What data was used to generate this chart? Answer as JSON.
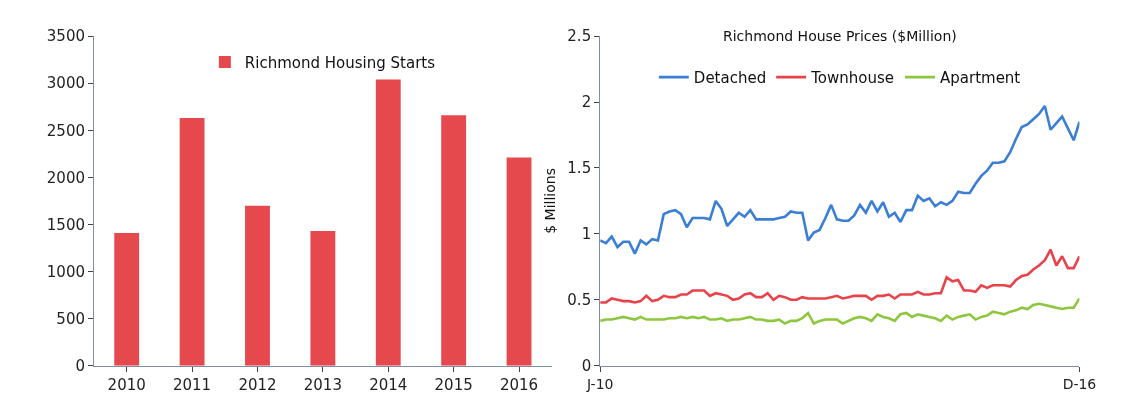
{
  "chart_data": [
    {
      "type": "bar",
      "categories": [
        "2010",
        "2011",
        "2012",
        "2013",
        "2014",
        "2015",
        "2016"
      ],
      "series": [
        {
          "name": "Richmond Housing Starts",
          "color": "#e5484d",
          "values": [
            1410,
            2630,
            1700,
            1430,
            3040,
            2660,
            2210
          ]
        }
      ],
      "ylim": [
        0,
        3500
      ],
      "yticks": [
        0,
        500,
        1000,
        1500,
        2000,
        2500,
        3000,
        3500
      ],
      "legend": "top",
      "grid": false
    },
    {
      "type": "line",
      "title": "Richmond House Prices ($Million)",
      "ylabel": "$ Millions",
      "categories": [
        "J-10",
        null,
        null,
        null,
        null,
        null,
        null,
        null,
        null,
        null,
        null,
        null,
        null,
        null,
        null,
        null,
        null,
        null,
        null,
        null,
        null,
        null,
        null,
        null,
        null,
        null,
        null,
        null,
        null,
        null,
        null,
        null,
        null,
        null,
        null,
        null,
        null,
        null,
        null,
        null,
        null,
        null,
        null,
        null,
        null,
        null,
        null,
        null,
        null,
        null,
        null,
        null,
        null,
        null,
        null,
        null,
        null,
        null,
        null,
        null,
        null,
        null,
        null,
        null,
        null,
        null,
        null,
        null,
        null,
        null,
        null,
        null,
        null,
        null,
        null,
        null,
        null,
        null,
        null,
        null,
        null,
        null,
        null,
        "D-16"
      ],
      "series": [
        {
          "name": "Detached",
          "color": "#3a7fd5",
          "values": [
            0.95,
            0.93,
            0.98,
            0.9,
            0.94,
            0.94,
            0.85,
            0.95,
            0.92,
            0.96,
            0.95,
            1.15,
            1.17,
            1.18,
            1.15,
            1.05,
            1.12,
            1.12,
            1.12,
            1.11,
            1.25,
            1.19,
            1.06,
            1.11,
            1.16,
            1.13,
            1.18,
            1.11,
            1.11,
            1.11,
            1.11,
            1.12,
            1.13,
            1.17,
            1.16,
            1.16,
            0.95,
            1.01,
            1.03,
            1.12,
            1.22,
            1.11,
            1.1,
            1.1,
            1.14,
            1.22,
            1.16,
            1.25,
            1.17,
            1.24,
            1.13,
            1.16,
            1.09,
            1.18,
            1.18,
            1.29,
            1.25,
            1.27,
            1.21,
            1.24,
            1.22,
            1.25,
            1.32,
            1.31,
            1.31,
            1.38,
            1.44,
            1.48,
            1.54,
            1.54,
            1.55,
            1.62,
            1.72,
            1.81,
            1.83,
            1.87,
            1.91,
            1.97,
            1.79,
            1.84,
            1.89,
            1.8,
            1.71,
            1.85
          ]
        },
        {
          "name": "Townhouse",
          "color": "#e8434b",
          "values": [
            0.48,
            0.48,
            0.51,
            0.5,
            0.49,
            0.49,
            0.48,
            0.49,
            0.53,
            0.49,
            0.5,
            0.53,
            0.52,
            0.52,
            0.54,
            0.54,
            0.57,
            0.57,
            0.57,
            0.53,
            0.55,
            0.54,
            0.53,
            0.5,
            0.51,
            0.54,
            0.55,
            0.52,
            0.52,
            0.55,
            0.5,
            0.53,
            0.52,
            0.5,
            0.5,
            0.52,
            0.51,
            0.51,
            0.51,
            0.51,
            0.52,
            0.53,
            0.51,
            0.52,
            0.53,
            0.53,
            0.53,
            0.5,
            0.53,
            0.53,
            0.54,
            0.51,
            0.54,
            0.54,
            0.54,
            0.56,
            0.54,
            0.54,
            0.55,
            0.55,
            0.67,
            0.64,
            0.65,
            0.57,
            0.57,
            0.56,
            0.61,
            0.59,
            0.61,
            0.61,
            0.61,
            0.6,
            0.65,
            0.68,
            0.69,
            0.73,
            0.76,
            0.8,
            0.88,
            0.76,
            0.83,
            0.74,
            0.74,
            0.83
          ]
        },
        {
          "name": "Apartment",
          "color": "#8dc63f",
          "values": [
            0.34,
            0.35,
            0.35,
            0.36,
            0.37,
            0.36,
            0.35,
            0.37,
            0.35,
            0.35,
            0.35,
            0.35,
            0.36,
            0.36,
            0.37,
            0.36,
            0.37,
            0.36,
            0.37,
            0.35,
            0.35,
            0.36,
            0.34,
            0.35,
            0.35,
            0.36,
            0.37,
            0.35,
            0.35,
            0.34,
            0.34,
            0.35,
            0.32,
            0.34,
            0.34,
            0.36,
            0.4,
            0.32,
            0.34,
            0.35,
            0.35,
            0.35,
            0.32,
            0.34,
            0.36,
            0.37,
            0.36,
            0.34,
            0.39,
            0.37,
            0.36,
            0.34,
            0.39,
            0.4,
            0.37,
            0.39,
            0.38,
            0.37,
            0.36,
            0.34,
            0.38,
            0.35,
            0.37,
            0.38,
            0.39,
            0.35,
            0.37,
            0.38,
            0.41,
            0.4,
            0.39,
            0.41,
            0.42,
            0.44,
            0.43,
            0.46,
            0.47,
            0.46,
            0.45,
            0.44,
            0.43,
            0.44,
            0.44,
            0.51
          ]
        }
      ],
      "ylim": [
        0,
        2.5
      ],
      "yticks": [
        0,
        0.5,
        1,
        1.5,
        2,
        2.5
      ],
      "legend": "top",
      "grid": false
    }
  ]
}
